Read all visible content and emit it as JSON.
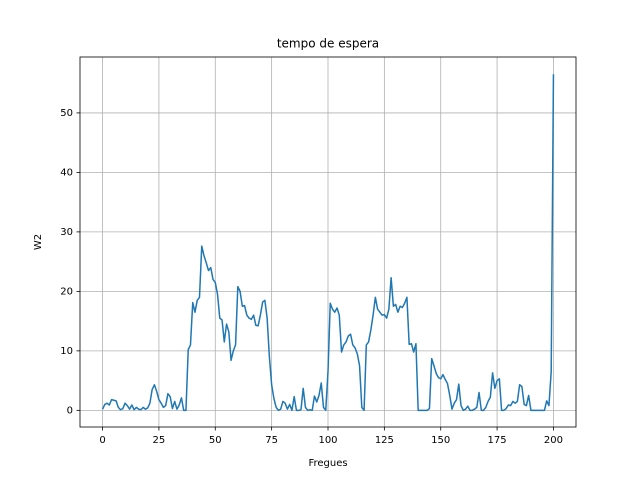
{
  "chart_data": {
    "type": "line",
    "title": "tempo de espera",
    "xlabel": "Fregues",
    "ylabel": "W2",
    "color": "#1f77b4",
    "grid": true,
    "xlim": [
      -10,
      210
    ],
    "ylim": [
      -2.8,
      59.4
    ],
    "xticks": [
      0,
      25,
      50,
      75,
      100,
      125,
      150,
      175,
      200
    ],
    "yticks": [
      0,
      10,
      20,
      30,
      40,
      50
    ],
    "x": [
      0,
      1,
      2,
      3,
      4,
      5,
      6,
      7,
      8,
      9,
      10,
      11,
      12,
      13,
      14,
      15,
      16,
      17,
      18,
      19,
      20,
      21,
      22,
      23,
      24,
      25,
      26,
      27,
      28,
      29,
      30,
      31,
      32,
      33,
      34,
      35,
      36,
      37,
      38,
      39,
      40,
      41,
      42,
      43,
      44,
      45,
      46,
      47,
      48,
      49,
      50,
      51,
      52,
      53,
      54,
      55,
      56,
      57,
      58,
      59,
      60,
      61,
      62,
      63,
      64,
      65,
      66,
      67,
      68,
      69,
      70,
      71,
      72,
      73,
      74,
      75,
      76,
      77,
      78,
      79,
      80,
      81,
      82,
      83,
      84,
      85,
      86,
      87,
      88,
      89,
      90,
      91,
      92,
      93,
      94,
      95,
      96,
      97,
      98,
      99,
      100,
      101,
      102,
      103,
      104,
      105,
      106,
      107,
      108,
      109,
      110,
      111,
      112,
      113,
      114,
      115,
      116,
      117,
      118,
      119,
      120,
      121,
      122,
      123,
      124,
      125,
      126,
      127,
      128,
      129,
      130,
      131,
      132,
      133,
      134,
      135,
      136,
      137,
      138,
      139,
      140,
      141,
      142,
      143,
      144,
      145,
      146,
      147,
      148,
      149,
      150,
      151,
      152,
      153,
      154,
      155,
      156,
      157,
      158,
      159,
      160,
      161,
      162,
      163,
      164,
      165,
      166,
      167,
      168,
      169,
      170,
      171,
      172,
      173,
      174,
      175,
      176,
      177,
      178,
      179,
      180,
      181,
      182,
      183,
      184,
      185,
      186,
      187,
      188,
      189,
      190,
      191,
      192,
      193,
      194,
      195,
      196,
      197,
      198,
      199,
      200
    ],
    "values": [
      0.2,
      1,
      1.2,
      0.9,
      1.8,
      1.7,
      1.6,
      0.5,
      0.1,
      0.3,
      1.2,
      0.8,
      0.2,
      0.9,
      0.1,
      0.5,
      0.2,
      0.1,
      0.5,
      0.2,
      0.4,
      1.2,
      3.5,
      4.3,
      3.2,
      1.8,
      1.2,
      0.5,
      0.8,
      2.8,
      2.3,
      0.3,
      1.5,
      0.2,
      0.9,
      2.1,
      0,
      0,
      10.2,
      11,
      18.1,
      16.5,
      18.5,
      19,
      27.6,
      26,
      24.8,
      23.5,
      24,
      22,
      21.5,
      19.5,
      15.5,
      15.2,
      11.5,
      14.5,
      13.2,
      8.4,
      10,
      11,
      20.8,
      20,
      17.5,
      17.6,
      16,
      15.5,
      15.3,
      16,
      14.3,
      14.2,
      16,
      18.2,
      18.5,
      15.5,
      9,
      4.3,
      2,
      0.5,
      0,
      0.2,
      1.5,
      1.2,
      0.2,
      1,
      0,
      2.3,
      0,
      0,
      0.1,
      3.7,
      0.5,
      0,
      0.1,
      0,
      2.4,
      1.4,
      2.5,
      4.6,
      0.5,
      0,
      6.5,
      18,
      17,
      16.5,
      17.2,
      16,
      9.8,
      11,
      11.5,
      12.5,
      12.8,
      11,
      10.5,
      9.5,
      7.5,
      0.5,
      0,
      11,
      11.5,
      13.5,
      16,
      19,
      17,
      16.5,
      16,
      16.1,
      15.5,
      17,
      22.3,
      17.5,
      17.8,
      16.5,
      17.5,
      17.3,
      18,
      19,
      11.1,
      11.2,
      9.8,
      11.2,
      0,
      0,
      0,
      0,
      0,
      0.3,
      8.7,
      7.5,
      6.2,
      5.5,
      5.3,
      6,
      5.2,
      4.5,
      2.5,
      0.2,
      1.2,
      1.8,
      4.4,
      0.8,
      0,
      0.2,
      0.7,
      0,
      0,
      0.2,
      0.5,
      3,
      0,
      0,
      0.5,
      1.5,
      2.2,
      6.3,
      3.7,
      5,
      5.3,
      0,
      0,
      0.3,
      0.9,
      0.8,
      1.5,
      1.2,
      1.5,
      4.3,
      4,
      1,
      0.8,
      2.5,
      0,
      0,
      0,
      0,
      0,
      0,
      0,
      1.6,
      0.8,
      6.5,
      56.5
    ]
  }
}
